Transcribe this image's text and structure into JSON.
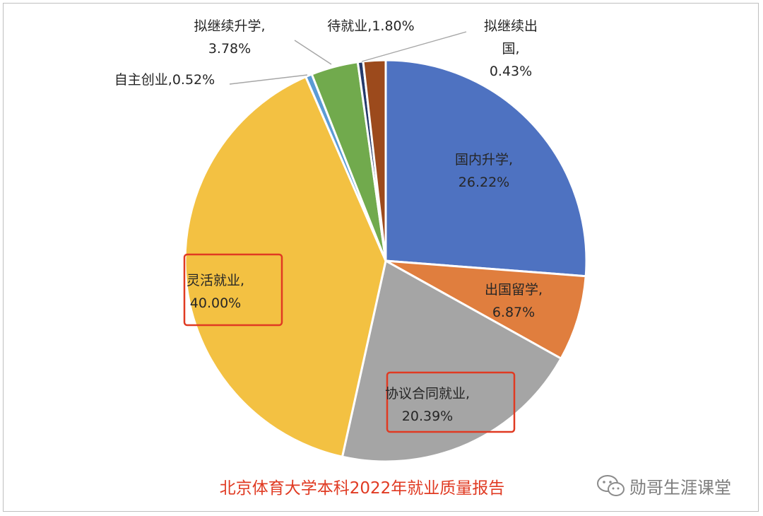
{
  "chart_data": {
    "type": "pie",
    "title": "北京体育大学本科2022年就业质量报告",
    "slices": [
      {
        "name": "国内升学",
        "value": 26.22,
        "line1": "国内升学,",
        "line2": "26.22%",
        "color": "#4e72c1"
      },
      {
        "name": "出国留学",
        "value": 6.87,
        "line1": "出国留学,",
        "line2": "6.87%",
        "color": "#e07e3e"
      },
      {
        "name": "协议合同就业",
        "value": 20.39,
        "line1": "协议合同就业,",
        "line2": "20.39%",
        "color": "#a5a5a5"
      },
      {
        "name": "灵活就业",
        "value": 40.0,
        "line1": "灵活就业,",
        "line2": "40.00%",
        "color": "#f3c142"
      },
      {
        "name": "自主创业",
        "value": 0.52,
        "line1": "自主创业,0.52%",
        "color": "#5b9bd5"
      },
      {
        "name": "拟继续升学",
        "value": 3.78,
        "line1": "拟继续升学,",
        "line2": "3.78%",
        "color": "#71aa4d"
      },
      {
        "name": "拟继续出国",
        "value": 0.43,
        "line1": "拟继续出",
        "line2": "国,",
        "line3": "0.43%",
        "color": "#24396a"
      },
      {
        "name": "待就业",
        "value": 1.8,
        "line1": "待就业,1.80%",
        "color": "#9c4a1c"
      }
    ],
    "highlighted": [
      "灵活就业",
      "协议合同就业"
    ],
    "highlight_color": "#e03a22"
  },
  "watermark": {
    "text": "勋哥生涯课堂",
    "icon": "wechat-icon"
  }
}
